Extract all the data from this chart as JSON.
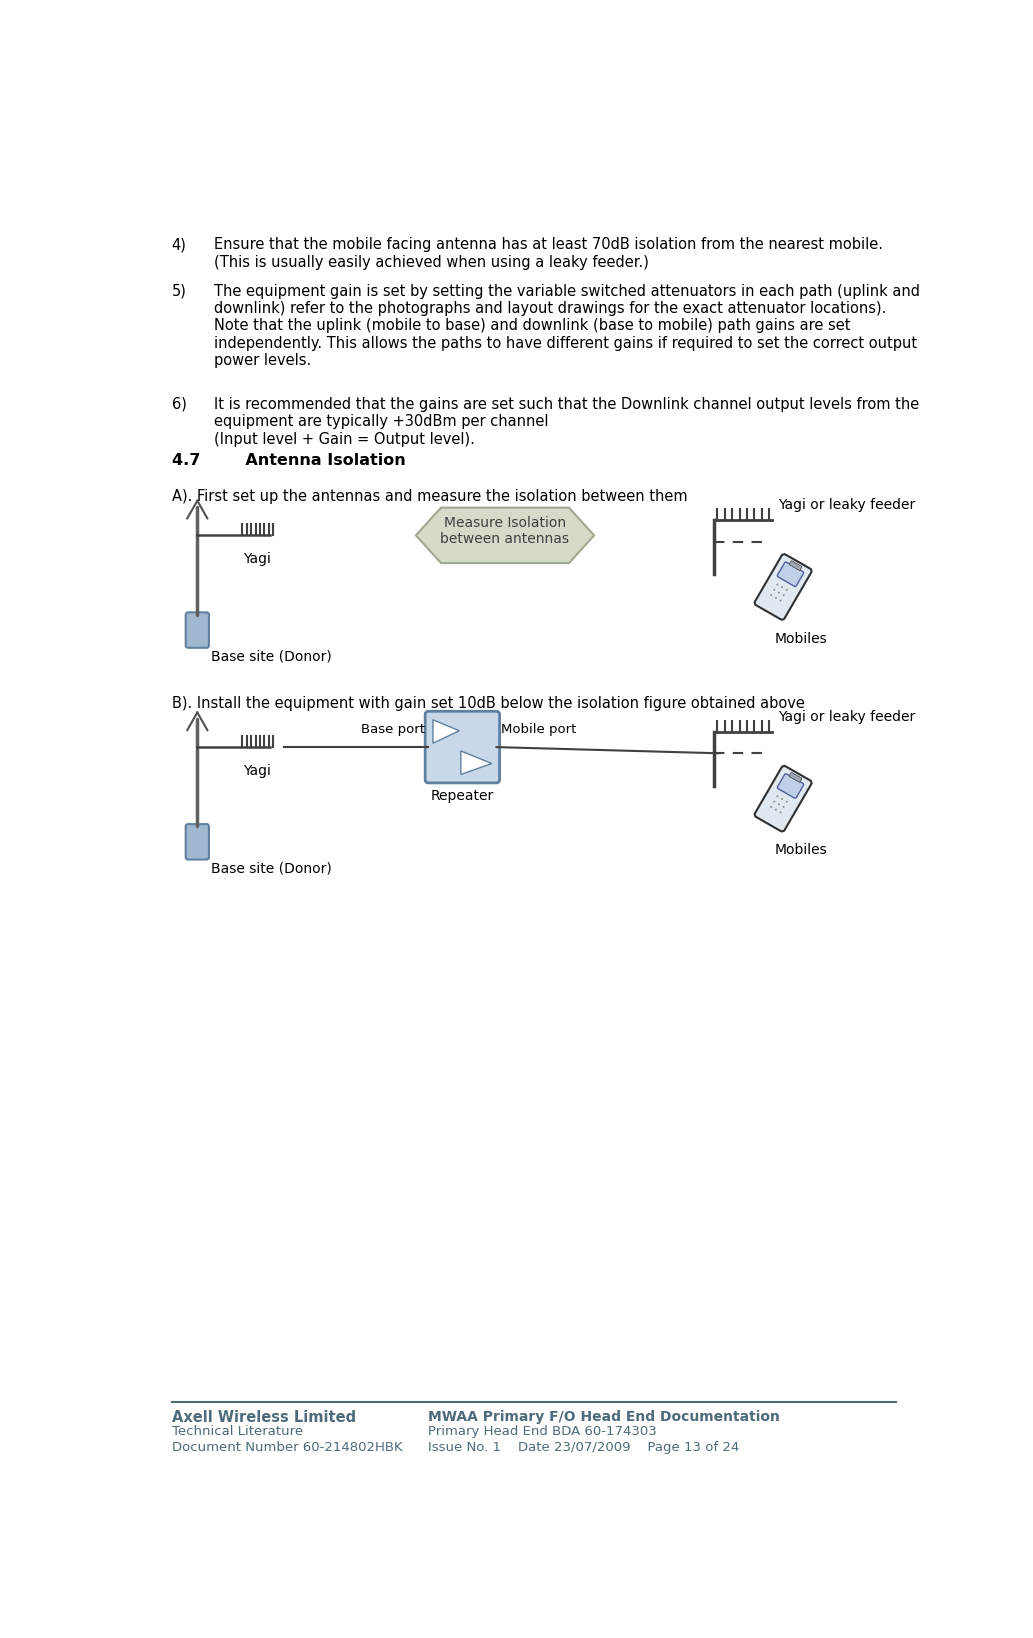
{
  "page_bg": "#ffffff",
  "text_color": "#000000",
  "header_color": "#4d6b7a",
  "item4_text": "Ensure that the mobile facing antenna has at least 70dB isolation from the nearest mobile.\n(This is usually easily achieved when using a leaky feeder.)",
  "item5_text": "The equipment gain is set by setting the variable switched attenuators in each path (uplink and\ndownlink) refer to the photographs and layout drawings for the exact attenuator locations).\nNote that the uplink (mobile to base) and downlink (base to mobile) path gains are set\nindependently. This allows the paths to have different gains if required to set the correct output\npower levels.",
  "item6_text": "It is recommended that the gains are set such that the Downlink channel output levels from the\nequipment are typically +30dBm per channel\n(Input level + Gain = Output level).",
  "section_title": "4.7        Antenna Isolation",
  "diagram_a_label": "A). First set up the antennas and measure the isolation between them",
  "diagram_b_label": "B). Install the equipment with gain set 10dB below the isolation figure obtained above",
  "arrow_box_text": "Measure Isolation\nbetween antennas",
  "yagi_label": "Yagi",
  "yagi_or_leaky": "Yagi or leaky feeder",
  "base_site_label": "Base site (Donor)",
  "mobiles_label": "Mobiles",
  "base_port_label": "Base port",
  "mobile_port_label": "Mobile port",
  "repeater_label": "Repeater",
  "footer_left_line1": "Axell Wireless Limited",
  "footer_left_line2": "Technical Literature",
  "footer_left_line3": "Document Number 60-214802HBK",
  "footer_right_line1": "MWAA Primary F/O Head End Documentation",
  "footer_right_line2": "Primary Head End BDA 60-174303",
  "footer_right_line3": "Issue No. 1    Date 23/07/2009    Page 13 of 24",
  "arrow_fill": "#d4dbc8",
  "arrow_edge": "#a0a890",
  "repeater_fill": "#c8d8e8",
  "repeater_edge": "#6080a0",
  "base_unit_fill": "#a0b8d0",
  "phone_body_fill": "#e0e8f0",
  "phone_screen_fill": "#c0d0e8"
}
